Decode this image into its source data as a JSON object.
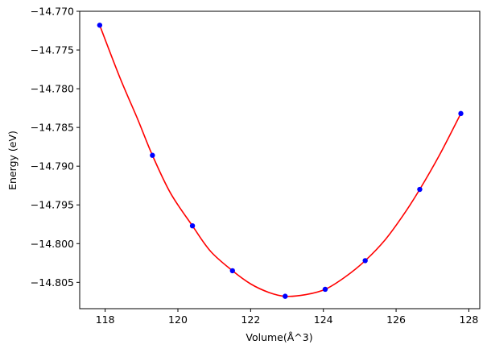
{
  "chart_data": {
    "type": "scatter",
    "xlabel": "Volume(Å^3)",
    "ylabel": "Energy (eV)",
    "xlim": [
      117.3,
      128.3
    ],
    "ylim": [
      -14.8084,
      -14.77
    ],
    "x_ticks": [
      118,
      120,
      122,
      124,
      126,
      128
    ],
    "x_tick_labels": [
      "118",
      "120",
      "122",
      "124",
      "126",
      "128"
    ],
    "y_ticks": [
      -14.77,
      -14.775,
      -14.78,
      -14.785,
      -14.79,
      -14.795,
      -14.8,
      -14.805
    ],
    "y_tick_labels": [
      "−14.770",
      "−14.775",
      "−14.780",
      "−14.785",
      "−14.790",
      "−14.795",
      "−14.800",
      "−14.805"
    ],
    "grid": false,
    "series": [
      {
        "kind": "points",
        "color": "#0000ff",
        "x": [
          117.85,
          119.3,
          120.4,
          121.5,
          122.95,
          124.05,
          125.15,
          126.65,
          127.78
        ],
        "y": [
          -14.7718,
          -14.7886,
          -14.7977,
          -14.8035,
          -14.8068,
          -14.8059,
          -14.8022,
          -14.793,
          -14.7832
        ]
      },
      {
        "kind": "fit-curve",
        "color": "#ff0000",
        "x": [
          117.85,
          118.4,
          118.9,
          119.3,
          119.8,
          120.4,
          120.9,
          121.5,
          122.0,
          122.5,
          122.95,
          123.5,
          124.05,
          124.6,
          125.15,
          125.7,
          126.2,
          126.65,
          127.2,
          127.78
        ],
        "y": [
          -14.7718,
          -14.7785,
          -14.784,
          -14.7886,
          -14.7935,
          -14.7977,
          -14.801,
          -14.8035,
          -14.8052,
          -14.8063,
          -14.8068,
          -14.8066,
          -14.8059,
          -14.8043,
          -14.8022,
          -14.7995,
          -14.7963,
          -14.793,
          -14.7885,
          -14.7832
        ]
      }
    ]
  }
}
